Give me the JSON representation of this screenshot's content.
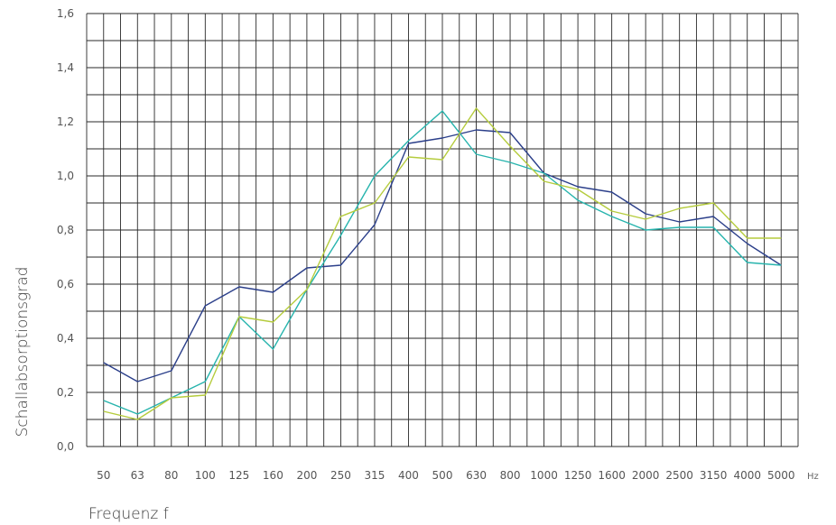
{
  "chart_data": {
    "type": "line",
    "xlabel": "Frequenz f",
    "ylabel": "Schallabsorptionsgrad",
    "x_unit": "Hz",
    "categories": [
      "50",
      "63",
      "80",
      "100",
      "125",
      "160",
      "200",
      "250",
      "315",
      "400",
      "500",
      "630",
      "800",
      "1000",
      "1250",
      "1600",
      "2000",
      "2500",
      "3150",
      "4000",
      "5000"
    ],
    "y_ticks": [
      "0,0",
      "0,2",
      "0,4",
      "0,6",
      "0,8",
      "1,0",
      "1,2",
      "1,4",
      "1,6"
    ],
    "ylim": [
      0,
      1.6
    ],
    "grid": true,
    "series": [
      {
        "color": "#2b3f8a",
        "values": [
          0.31,
          0.24,
          0.28,
          0.52,
          0.59,
          0.57,
          0.66,
          0.67,
          0.82,
          1.12,
          1.14,
          1.17,
          1.16,
          1.01,
          0.96,
          0.94,
          0.86,
          0.83,
          0.85,
          0.75,
          0.67
        ]
      },
      {
        "color": "#27b4ad",
        "values": [
          0.17,
          0.12,
          0.18,
          0.24,
          0.48,
          0.36,
          0.58,
          0.78,
          1.0,
          1.13,
          1.24,
          1.08,
          1.05,
          1.01,
          0.91,
          0.85,
          0.8,
          0.81,
          0.81,
          0.68,
          0.67
        ]
      },
      {
        "color": "#b5cc3d",
        "values": [
          0.13,
          0.1,
          0.18,
          0.19,
          0.48,
          0.46,
          0.58,
          0.85,
          0.9,
          1.07,
          1.06,
          1.25,
          1.11,
          0.98,
          0.95,
          0.87,
          0.84,
          0.88,
          0.9,
          0.77,
          0.77
        ]
      }
    ]
  }
}
